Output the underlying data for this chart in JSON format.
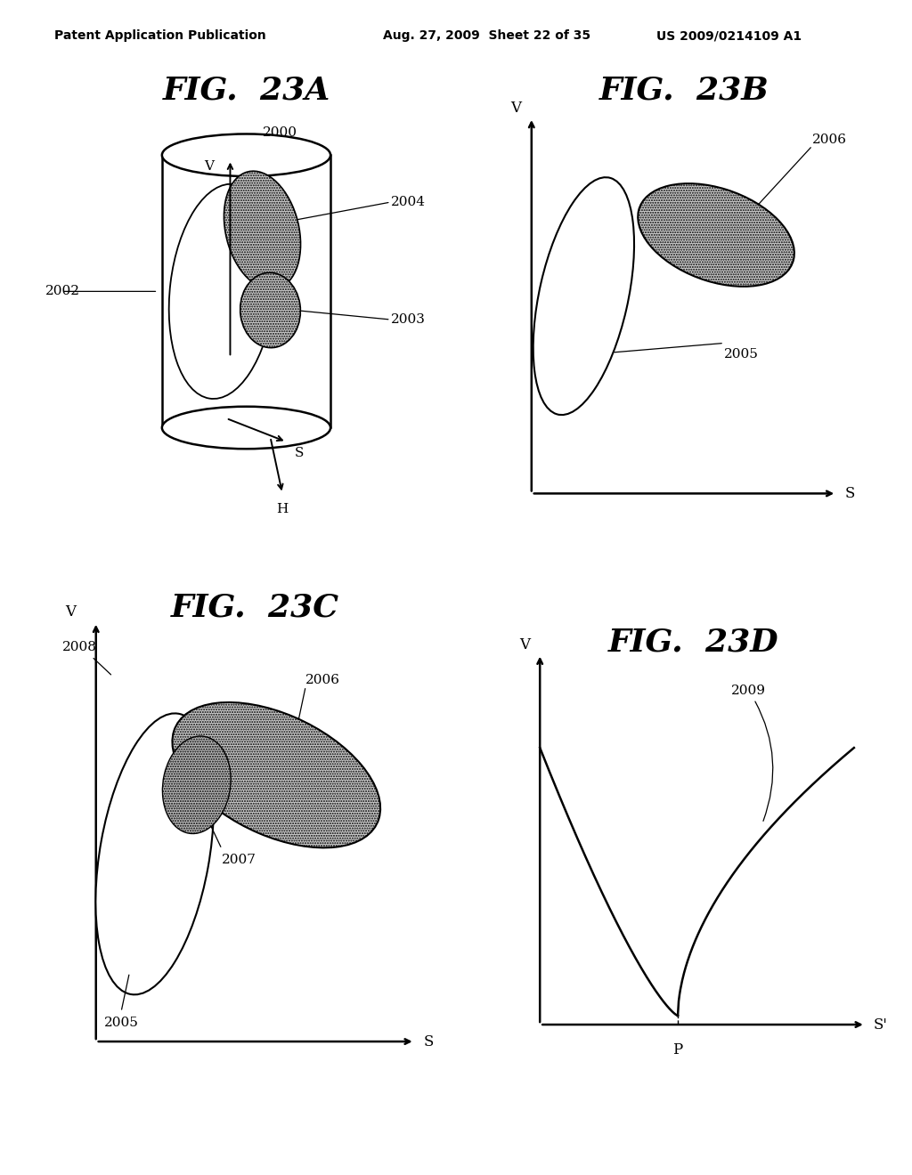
{
  "bg_color": "#ffffff",
  "header_text": "Patent Application Publication    Aug. 27, 2009  Sheet 22 of 35    US 2009/0214109 A1",
  "fig_titles": [
    "FIG.  23A",
    "FIG.  23B",
    "FIG.  23C",
    "FIG.  23D"
  ],
  "hatch_pattern": "......",
  "fig_title_fontsize": 26,
  "label_fontsize": 11,
  "lw_main": 1.8,
  "lw_thin": 1.0
}
